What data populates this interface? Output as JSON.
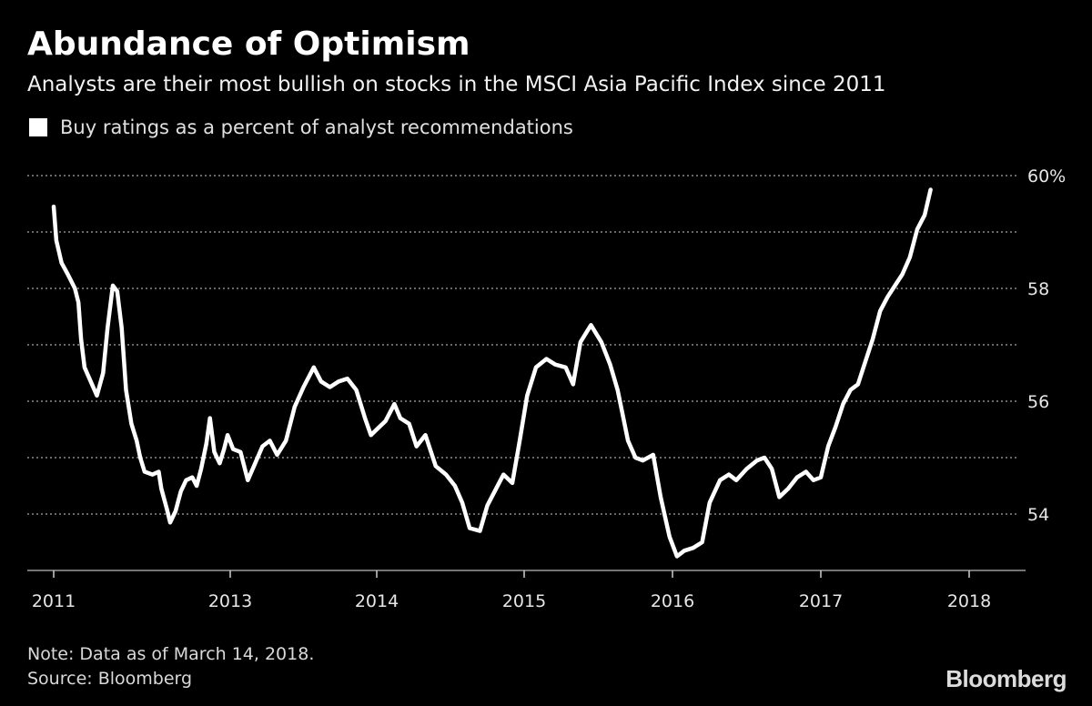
{
  "title": "Abundance of Optimism",
  "subtitle": "Analysts are their most bullish on stocks in the MSCI Asia Pacific Index since 2011",
  "legend_label": "Buy ratings as a percent of analyst recommendations",
  "note": "Note: Data as of March 14, 2018.",
  "source": "Source: Bloomberg",
  "brand": "Bloomberg",
  "colors": {
    "background": "#000000",
    "line": "#ffffff",
    "grid": "#8a8a8a",
    "text": "#ffffff"
  },
  "chart_data": {
    "type": "line",
    "title": "Abundance of Optimism",
    "ylabel": "",
    "xlabel": "",
    "ylim": [
      53,
      60
    ],
    "y_ticks": [
      {
        "value": 54,
        "label": "54"
      },
      {
        "value": 56,
        "label": "56"
      },
      {
        "value": 58,
        "label": "58"
      },
      {
        "value": 60,
        "label": "60%"
      }
    ],
    "x_ticks": [
      {
        "value": 2011.0,
        "label": "2011"
      },
      {
        "value": 2013.0,
        "label": "2013"
      },
      {
        "value": 2014.0,
        "label": "2014"
      },
      {
        "value": 2015.0,
        "label": "2015"
      },
      {
        "value": 2016.0,
        "label": "2016"
      },
      {
        "value": 2017.0,
        "label": "2017"
      },
      {
        "value": 2018.0,
        "label": "2018"
      }
    ],
    "grid": "horizontal dotted",
    "legend": "top-left",
    "series": [
      {
        "name": "Buy ratings as a percent of analyst recommendations",
        "points": [
          [
            2011.0,
            59.45
          ],
          [
            2011.03,
            58.85
          ],
          [
            2011.09,
            58.45
          ],
          [
            2011.16,
            58.25
          ],
          [
            2011.24,
            58.0
          ],
          [
            2011.28,
            57.75
          ],
          [
            2011.31,
            57.1
          ],
          [
            2011.35,
            56.6
          ],
          [
            2011.42,
            56.35
          ],
          [
            2011.49,
            56.1
          ],
          [
            2011.56,
            56.5
          ],
          [
            2011.61,
            57.3
          ],
          [
            2011.67,
            58.05
          ],
          [
            2011.72,
            57.95
          ],
          [
            2011.77,
            57.3
          ],
          [
            2011.82,
            56.2
          ],
          [
            2011.88,
            55.6
          ],
          [
            2011.94,
            55.3
          ],
          [
            2011.98,
            55.0
          ],
          [
            2012.03,
            54.75
          ],
          [
            2012.12,
            54.7
          ],
          [
            2012.19,
            54.75
          ],
          [
            2012.22,
            54.45
          ],
          [
            2012.28,
            54.1
          ],
          [
            2012.32,
            53.85
          ],
          [
            2012.38,
            54.05
          ],
          [
            2012.44,
            54.4
          ],
          [
            2012.5,
            54.6
          ],
          [
            2012.57,
            54.65
          ],
          [
            2012.62,
            54.5
          ],
          [
            2012.67,
            54.8
          ],
          [
            2012.73,
            55.25
          ],
          [
            2012.77,
            55.7
          ],
          [
            2012.82,
            55.1
          ],
          [
            2012.88,
            54.9
          ],
          [
            2012.93,
            55.15
          ],
          [
            2012.97,
            55.4
          ],
          [
            2013.02,
            55.15
          ],
          [
            2013.07,
            55.1
          ],
          [
            2013.12,
            54.6
          ],
          [
            2013.17,
            54.9
          ],
          [
            2013.22,
            55.2
          ],
          [
            2013.27,
            55.3
          ],
          [
            2013.32,
            55.05
          ],
          [
            2013.38,
            55.3
          ],
          [
            2013.44,
            55.9
          ],
          [
            2013.5,
            56.25
          ],
          [
            2013.57,
            56.6
          ],
          [
            2013.62,
            56.35
          ],
          [
            2013.68,
            56.25
          ],
          [
            2013.74,
            56.35
          ],
          [
            2013.8,
            56.4
          ],
          [
            2013.86,
            56.2
          ],
          [
            2013.92,
            55.7
          ],
          [
            2013.96,
            55.4
          ],
          [
            2014.0,
            55.5
          ],
          [
            2014.06,
            55.65
          ],
          [
            2014.12,
            55.95
          ],
          [
            2014.16,
            55.7
          ],
          [
            2014.22,
            55.6
          ],
          [
            2014.27,
            55.2
          ],
          [
            2014.33,
            55.4
          ],
          [
            2014.4,
            54.85
          ],
          [
            2014.47,
            54.7
          ],
          [
            2014.53,
            54.5
          ],
          [
            2014.58,
            54.2
          ],
          [
            2014.63,
            53.75
          ],
          [
            2014.7,
            53.7
          ],
          [
            2014.75,
            54.15
          ],
          [
            2014.81,
            54.45
          ],
          [
            2014.86,
            54.7
          ],
          [
            2014.92,
            54.55
          ],
          [
            2014.97,
            55.3
          ],
          [
            2015.02,
            56.1
          ],
          [
            2015.08,
            56.6
          ],
          [
            2015.15,
            56.75
          ],
          [
            2015.21,
            56.65
          ],
          [
            2015.28,
            56.6
          ],
          [
            2015.33,
            56.3
          ],
          [
            2015.38,
            57.05
          ],
          [
            2015.45,
            57.35
          ],
          [
            2015.52,
            57.05
          ],
          [
            2015.58,
            56.65
          ],
          [
            2015.63,
            56.2
          ],
          [
            2015.7,
            55.3
          ],
          [
            2015.75,
            55.0
          ],
          [
            2015.8,
            54.95
          ],
          [
            2015.87,
            55.05
          ],
          [
            2015.92,
            54.3
          ],
          [
            2015.98,
            53.6
          ],
          [
            2016.03,
            53.25
          ],
          [
            2016.08,
            53.35
          ],
          [
            2016.14,
            53.4
          ],
          [
            2016.2,
            53.5
          ],
          [
            2016.25,
            54.2
          ],
          [
            2016.32,
            54.6
          ],
          [
            2016.38,
            54.7
          ],
          [
            2016.43,
            54.6
          ],
          [
            2016.5,
            54.8
          ],
          [
            2016.57,
            54.95
          ],
          [
            2016.62,
            55.0
          ],
          [
            2016.67,
            54.8
          ],
          [
            2016.72,
            54.3
          ],
          [
            2016.78,
            54.45
          ],
          [
            2016.84,
            54.65
          ],
          [
            2016.9,
            54.75
          ],
          [
            2016.95,
            54.6
          ],
          [
            2017.0,
            54.65
          ],
          [
            2017.05,
            55.2
          ],
          [
            2017.1,
            55.55
          ],
          [
            2017.15,
            55.95
          ],
          [
            2017.2,
            56.2
          ],
          [
            2017.25,
            56.3
          ],
          [
            2017.3,
            56.7
          ],
          [
            2017.35,
            57.1
          ],
          [
            2017.4,
            57.6
          ],
          [
            2017.45,
            57.85
          ],
          [
            2017.5,
            58.05
          ],
          [
            2017.55,
            58.25
          ],
          [
            2017.6,
            58.55
          ],
          [
            2017.65,
            59.05
          ],
          [
            2017.7,
            59.3
          ],
          [
            2017.74,
            59.75
          ]
        ]
      }
    ]
  }
}
